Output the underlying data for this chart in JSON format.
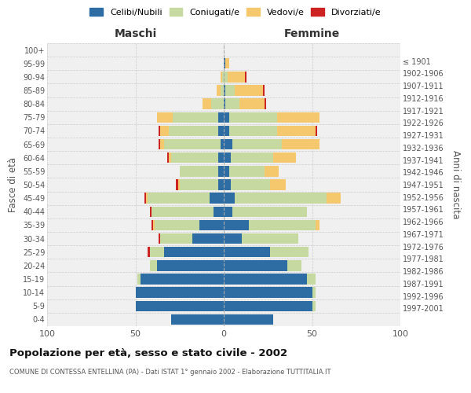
{
  "age_groups": [
    "0-4",
    "5-9",
    "10-14",
    "15-19",
    "20-24",
    "25-29",
    "30-34",
    "35-39",
    "40-44",
    "45-49",
    "50-54",
    "55-59",
    "60-64",
    "65-69",
    "70-74",
    "75-79",
    "80-84",
    "85-89",
    "90-94",
    "95-99",
    "100+"
  ],
  "birth_years": [
    "1997-2001",
    "1992-1996",
    "1987-1991",
    "1982-1986",
    "1977-1981",
    "1972-1976",
    "1967-1971",
    "1962-1966",
    "1957-1961",
    "1952-1956",
    "1947-1951",
    "1942-1946",
    "1937-1941",
    "1932-1936",
    "1927-1931",
    "1922-1926",
    "1917-1921",
    "1912-1916",
    "1907-1911",
    "1902-1906",
    "≤ 1901"
  ],
  "males": {
    "celibi": [
      30,
      50,
      50,
      47,
      38,
      34,
      18,
      14,
      6,
      8,
      3,
      3,
      3,
      2,
      3,
      3,
      0,
      0,
      0,
      0,
      0
    ],
    "coniugati": [
      0,
      0,
      0,
      2,
      4,
      8,
      18,
      25,
      35,
      35,
      22,
      22,
      27,
      32,
      28,
      26,
      7,
      2,
      1,
      0,
      0
    ],
    "vedovi": [
      0,
      0,
      0,
      0,
      0,
      0,
      0,
      1,
      0,
      1,
      1,
      0,
      1,
      2,
      5,
      9,
      5,
      2,
      1,
      0,
      0
    ],
    "divorziati": [
      0,
      0,
      0,
      0,
      0,
      1,
      1,
      1,
      1,
      1,
      1,
      0,
      1,
      1,
      1,
      0,
      0,
      0,
      0,
      0,
      0
    ]
  },
  "females": {
    "nubili": [
      28,
      50,
      50,
      47,
      36,
      26,
      10,
      14,
      5,
      6,
      4,
      3,
      4,
      5,
      3,
      3,
      1,
      1,
      0,
      1,
      0
    ],
    "coniugate": [
      0,
      2,
      2,
      5,
      8,
      22,
      32,
      38,
      42,
      52,
      22,
      20,
      24,
      28,
      27,
      27,
      8,
      5,
      2,
      0,
      0
    ],
    "vedove": [
      0,
      0,
      0,
      0,
      0,
      0,
      0,
      2,
      0,
      8,
      9,
      8,
      13,
      21,
      22,
      24,
      14,
      16,
      10,
      2,
      0
    ],
    "divorziate": [
      0,
      0,
      0,
      0,
      0,
      0,
      0,
      0,
      0,
      0,
      0,
      0,
      0,
      0,
      1,
      0,
      1,
      1,
      1,
      0,
      0
    ]
  },
  "colors": {
    "celibi_nubili": "#2e6da4",
    "coniugati": "#c5d9a0",
    "vedovi": "#f5c86e",
    "divorziati": "#cc2222"
  },
  "title": "Popolazione per età, sesso e stato civile - 2002",
  "subtitle": "COMUNE DI CONTESSA ENTELLINA (PA) - Dati ISTAT 1° gennaio 2002 - Elaborazione TUTTITALIA.IT",
  "xlabel_left": "Maschi",
  "xlabel_right": "Femmine",
  "ylabel_left": "Fasce di età",
  "ylabel_right": "Anni di nascita",
  "xlim": 100,
  "bg_color": "#f0f0f0",
  "grid_color": "#cccccc"
}
